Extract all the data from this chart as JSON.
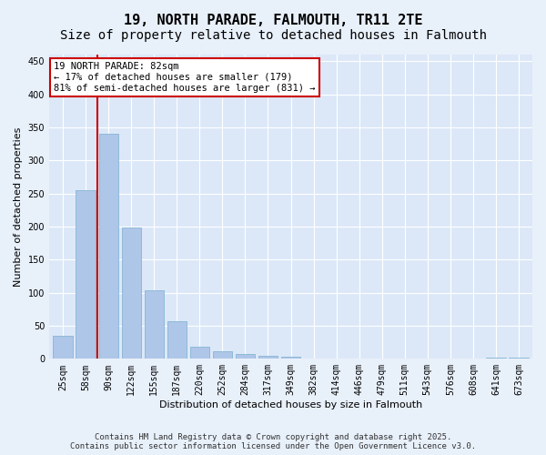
{
  "title": "19, NORTH PARADE, FALMOUTH, TR11 2TE",
  "subtitle": "Size of property relative to detached houses in Falmouth",
  "xlabel": "Distribution of detached houses by size in Falmouth",
  "ylabel": "Number of detached properties",
  "categories": [
    "25sqm",
    "58sqm",
    "90sqm",
    "122sqm",
    "155sqm",
    "187sqm",
    "220sqm",
    "252sqm",
    "284sqm",
    "317sqm",
    "349sqm",
    "382sqm",
    "414sqm",
    "446sqm",
    "479sqm",
    "511sqm",
    "543sqm",
    "576sqm",
    "608sqm",
    "641sqm",
    "673sqm"
  ],
  "bar_heights": [
    35,
    255,
    340,
    198,
    103,
    57,
    18,
    11,
    8,
    5,
    3,
    1,
    0,
    1,
    0,
    0,
    0,
    0,
    0,
    2,
    2
  ],
  "bar_color": "#aec6e8",
  "bar_edge_color": "#7aaed0",
  "vline_x": 1.5,
  "vline_color": "#cc0000",
  "annotation_text": "19 NORTH PARADE: 82sqm\n← 17% of detached houses are smaller (179)\n81% of semi-detached houses are larger (831) →",
  "annotation_box_color": "#ffffff",
  "annotation_box_edge": "#cc0000",
  "ylim": [
    0,
    460
  ],
  "yticks": [
    0,
    50,
    100,
    150,
    200,
    250,
    300,
    350,
    400,
    450
  ],
  "background_color": "#e8f0fa",
  "plot_bg_color": "#dce8f8",
  "grid_color": "#ffffff",
  "footer_line1": "Contains HM Land Registry data © Crown copyright and database right 2025.",
  "footer_line2": "Contains public sector information licensed under the Open Government Licence v3.0.",
  "title_fontsize": 11,
  "subtitle_fontsize": 10,
  "axis_label_fontsize": 8,
  "tick_fontsize": 7,
  "annotation_fontsize": 7.5,
  "footer_fontsize": 6.5
}
